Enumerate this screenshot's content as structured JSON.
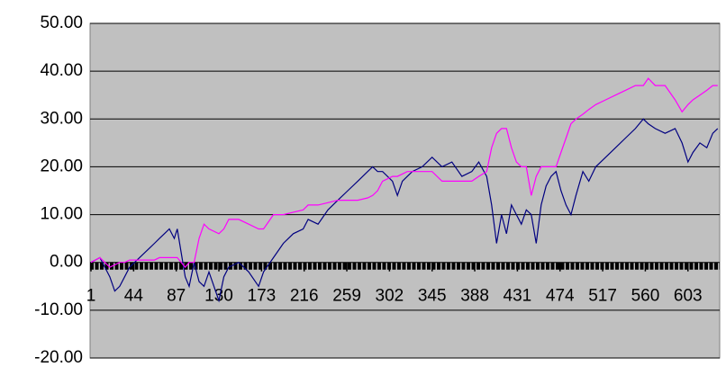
{
  "chart_data": {
    "type": "line",
    "x": [
      1,
      10,
      20,
      25,
      30,
      35,
      40,
      45,
      50,
      55,
      60,
      65,
      70,
      75,
      80,
      85,
      88,
      92,
      96,
      100,
      105,
      110,
      115,
      120,
      130,
      135,
      140,
      150,
      160,
      170,
      175,
      185,
      195,
      205,
      215,
      220,
      230,
      240,
      250,
      260,
      270,
      280,
      285,
      290,
      295,
      305,
      310,
      315,
      320,
      325,
      335,
      345,
      355,
      365,
      375,
      385,
      392,
      400,
      405,
      410,
      415,
      420,
      425,
      430,
      435,
      440,
      445,
      450,
      455,
      460,
      465,
      470,
      475,
      480,
      485,
      490,
      497,
      503,
      510,
      520,
      530,
      540,
      550,
      558,
      563,
      570,
      580,
      590,
      597,
      603,
      608,
      615,
      622,
      628,
      633
    ],
    "series": [
      {
        "color": "#000080",
        "values": [
          0,
          1,
          -3,
          -6,
          -5,
          -3,
          -1,
          0,
          1,
          2,
          3,
          4,
          5,
          6,
          7,
          5,
          7,
          2,
          -3,
          -5,
          0,
          -4,
          -5,
          -2,
          -8,
          -3,
          -1,
          0,
          -2,
          -5,
          -2,
          1,
          4,
          6,
          7,
          9,
          8,
          11,
          13,
          15,
          17,
          19,
          20,
          19,
          19,
          17,
          14,
          17,
          18,
          19,
          20,
          22,
          20,
          21,
          18,
          19,
          21,
          18,
          12,
          4,
          10,
          6,
          12,
          10,
          8,
          11,
          10,
          4,
          12,
          16,
          18,
          19,
          15,
          12,
          10,
          14,
          19,
          17,
          20,
          22,
          24,
          26,
          28,
          30,
          29,
          28,
          27,
          28,
          25,
          21,
          23,
          25,
          24,
          27,
          28
        ]
      },
      {
        "color": "#ff00ff",
        "values": [
          0,
          1,
          -1,
          -0.5,
          0,
          0,
          0.5,
          0.5,
          0.5,
          0.5,
          0.5,
          0.5,
          1,
          1,
          1,
          1,
          1,
          0,
          -1,
          0,
          0,
          5,
          8,
          7,
          6,
          7,
          9,
          9,
          8,
          7,
          7,
          10,
          10,
          10.5,
          11,
          12,
          12,
          12.5,
          13,
          13,
          13,
          13.5,
          14,
          15,
          17,
          18,
          18,
          18.5,
          19,
          19,
          19,
          19,
          17,
          17,
          17,
          17,
          18,
          19,
          24,
          27,
          28,
          28,
          24,
          21,
          20,
          20,
          14,
          18,
          20,
          20,
          20,
          20,
          23,
          26,
          29,
          30,
          31,
          32,
          33,
          34,
          35,
          36,
          37,
          37,
          38.5,
          37,
          37,
          34,
          31.5,
          33,
          34,
          35,
          36,
          37,
          37
        ]
      }
    ],
    "xlim": [
      1,
      635
    ],
    "xticks": [
      1,
      44,
      87,
      130,
      173,
      216,
      259,
      302,
      345,
      388,
      431,
      474,
      517,
      560,
      603
    ],
    "ylim": [
      -20,
      50
    ],
    "yticks": [
      {
        "value": -20,
        "label": "-20.00"
      },
      {
        "value": -10,
        "label": "-10.00"
      },
      {
        "value": 0,
        "label": "0.00"
      },
      {
        "value": 10,
        "label": "10.00"
      },
      {
        "value": 20,
        "label": "20.00"
      },
      {
        "value": 30,
        "label": "30.00"
      },
      {
        "value": 40,
        "label": "40.00"
      },
      {
        "value": 50,
        "label": "50.00"
      }
    ],
    "grid": true,
    "plot_background": "#c0c0c0"
  }
}
